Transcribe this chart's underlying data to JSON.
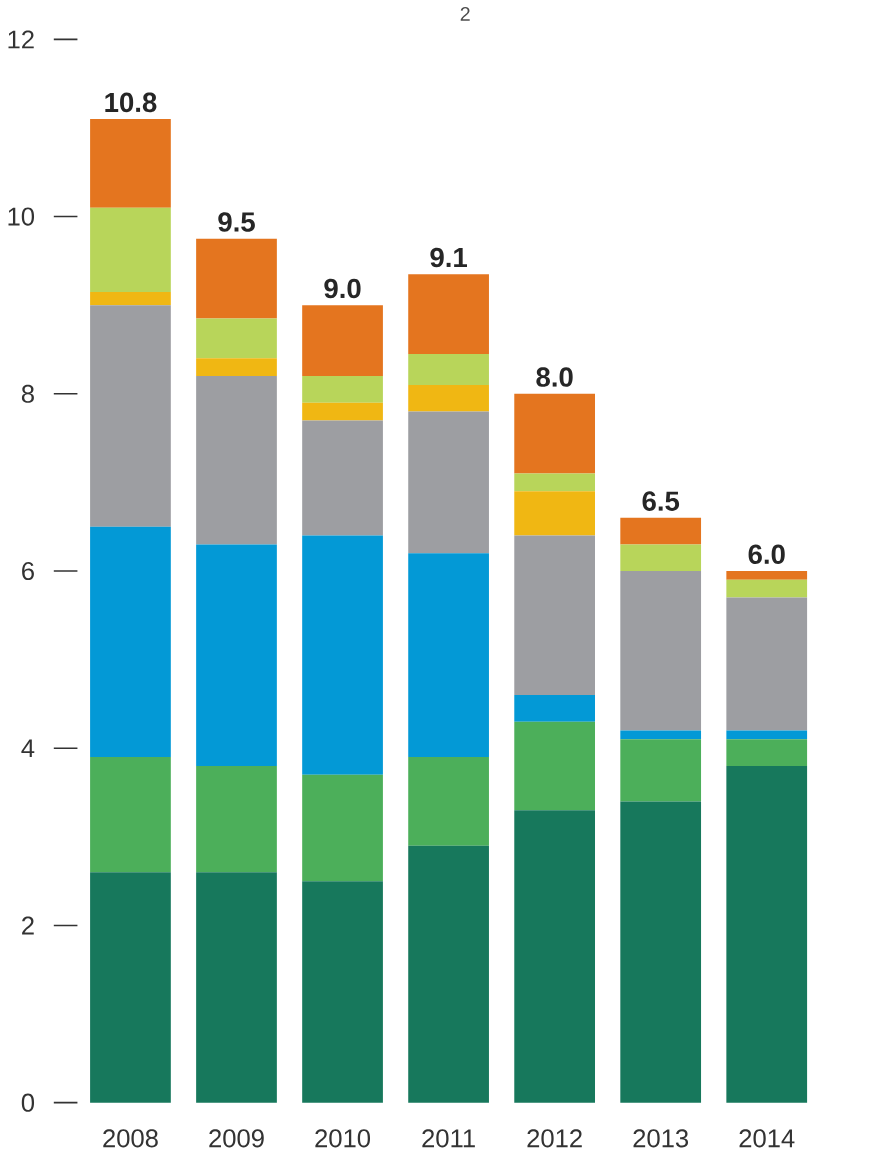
{
  "chart_data": {
    "type": "bar",
    "stacked": true,
    "annotations": [
      "2"
    ],
    "categories": [
      "2008",
      "2009",
      "2010",
      "2011",
      "2012",
      "2013",
      "2014"
    ],
    "series": [
      {
        "color": "#17785c",
        "values": [
          2.6,
          2.6,
          2.5,
          2.9,
          3.3,
          3.4,
          3.8
        ]
      },
      {
        "color": "#4caf5a",
        "values": [
          1.3,
          1.2,
          1.2,
          1.0,
          1.0,
          0.7,
          0.3
        ]
      },
      {
        "color": "#0399d6",
        "values": [
          2.6,
          2.5,
          2.7,
          2.3,
          0.3,
          0.1,
          0.1
        ]
      },
      {
        "color": "#9d9ea2",
        "values": [
          2.5,
          1.9,
          1.3,
          1.6,
          1.8,
          1.8,
          1.5
        ]
      },
      {
        "color": "#f0b713",
        "values": [
          0.15,
          0.2,
          0.2,
          0.3,
          0.5,
          0,
          0
        ]
      },
      {
        "color": "#b8d55a",
        "values": [
          0.95,
          0.45,
          0.3,
          0.35,
          0.2,
          0.3,
          0.2
        ]
      },
      {
        "color": "#e4751f",
        "values": [
          1.0,
          0.9,
          0.8,
          0.9,
          0.9,
          0.3,
          0.1
        ]
      }
    ],
    "totals": [
      "10.8",
      "9.5",
      "9.0",
      "9.1",
      "8.0",
      "6.5",
      "6.0"
    ],
    "ylim": [
      0,
      12
    ],
    "yticks": [
      0,
      2,
      4,
      6,
      8,
      10,
      12
    ]
  }
}
